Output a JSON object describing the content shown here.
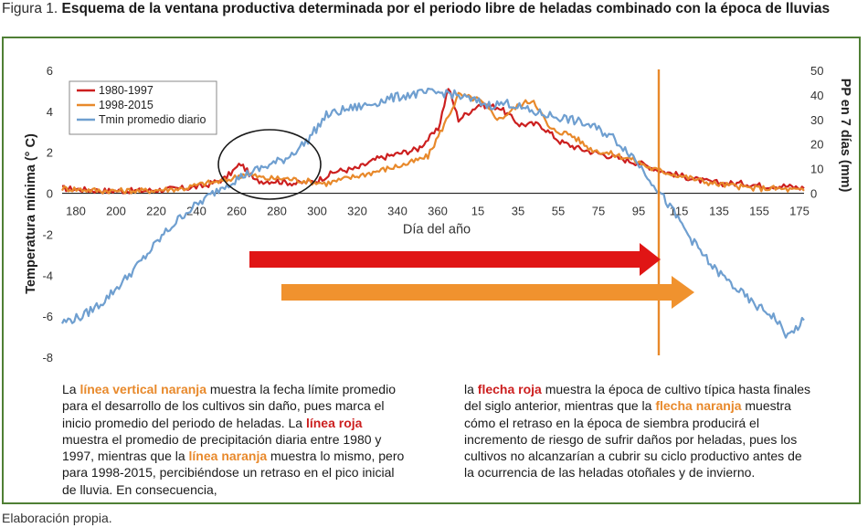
{
  "figure": {
    "label": "Figura 1.",
    "title": "Esquema de la ventana productiva determinada por el periodo libre de heladas combinado con la época de lluvias"
  },
  "chart_data": {
    "type": "line",
    "xlabel": "Día del año",
    "ylabel_left": "Temperatura mínima (° C)",
    "ylabel_right": "PP en 7 días (mm)",
    "x_ticks": [
      "180",
      "200",
      "220",
      "240",
      "260",
      "280",
      "300",
      "320",
      "340",
      "360",
      "15",
      "35",
      "55",
      "75",
      "95",
      "115",
      "135",
      "155",
      "175"
    ],
    "y_left_ticks": [
      6,
      4,
      2,
      0,
      -2,
      -4,
      -6,
      -8
    ],
    "y_left_range": [
      -8,
      6
    ],
    "y_right_ticks": [
      50,
      40,
      30,
      20,
      10,
      0
    ],
    "y_right_range": [
      0,
      50
    ],
    "legend": [
      {
        "name": "1980-1997",
        "color": "#cc1f1f"
      },
      {
        "name": "1998-2015",
        "color": "#e8892b"
      },
      {
        "name": "Tmin promedio diario",
        "color": "#6f9fd0"
      }
    ],
    "series": [
      {
        "name": "1980-1997",
        "axis": "right",
        "color": "#cc1f1f",
        "points": [
          [
            0,
            2
          ],
          [
            20,
            1
          ],
          [
            40,
            1
          ],
          [
            60,
            2
          ],
          [
            70,
            3
          ],
          [
            80,
            6
          ],
          [
            88,
            12
          ],
          [
            95,
            5
          ],
          [
            105,
            5
          ],
          [
            115,
            4
          ],
          [
            125,
            5
          ],
          [
            135,
            9
          ],
          [
            145,
            10
          ],
          [
            155,
            14
          ],
          [
            165,
            16
          ],
          [
            175,
            18
          ],
          [
            185,
            26
          ],
          [
            190,
            43
          ],
          [
            195,
            30
          ],
          [
            205,
            36
          ],
          [
            215,
            35
          ],
          [
            225,
            28
          ],
          [
            235,
            28
          ],
          [
            245,
            21
          ],
          [
            255,
            18
          ],
          [
            265,
            16
          ],
          [
            275,
            14
          ],
          [
            285,
            12
          ],
          [
            295,
            9
          ],
          [
            305,
            7
          ],
          [
            315,
            5
          ],
          [
            325,
            4
          ],
          [
            335,
            4
          ],
          [
            345,
            3
          ],
          [
            355,
            3
          ],
          [
            365,
            2
          ]
        ]
      },
      {
        "name": "1998-2015",
        "axis": "right",
        "color": "#e8892b",
        "points": [
          [
            0,
            2
          ],
          [
            20,
            1
          ],
          [
            40,
            1
          ],
          [
            60,
            2
          ],
          [
            70,
            4
          ],
          [
            80,
            5
          ],
          [
            90,
            8
          ],
          [
            100,
            6
          ],
          [
            110,
            6
          ],
          [
            120,
            5
          ],
          [
            130,
            4
          ],
          [
            140,
            6
          ],
          [
            150,
            8
          ],
          [
            160,
            10
          ],
          [
            170,
            12
          ],
          [
            180,
            15
          ],
          [
            188,
            28
          ],
          [
            195,
            40
          ],
          [
            205,
            38
          ],
          [
            215,
            30
          ],
          [
            225,
            36
          ],
          [
            232,
            38
          ],
          [
            240,
            26
          ],
          [
            250,
            24
          ],
          [
            260,
            18
          ],
          [
            270,
            16
          ],
          [
            280,
            14
          ],
          [
            290,
            10
          ],
          [
            300,
            8
          ],
          [
            310,
            6
          ],
          [
            320,
            4
          ],
          [
            330,
            3
          ],
          [
            340,
            2
          ],
          [
            350,
            2
          ],
          [
            365,
            1
          ]
        ]
      },
      {
        "name": "Tmin promedio diario",
        "axis": "left",
        "color": "#6f9fd0",
        "points": [
          [
            0,
            -6.3
          ],
          [
            10,
            -6
          ],
          [
            20,
            -5.3
          ],
          [
            30,
            -4.3
          ],
          [
            40,
            -3.2
          ],
          [
            50,
            -2
          ],
          [
            60,
            -1
          ],
          [
            70,
            -0.3
          ],
          [
            80,
            0.4
          ],
          [
            90,
            0.9
          ],
          [
            100,
            1.3
          ],
          [
            110,
            1.7
          ],
          [
            120,
            2.5
          ],
          [
            130,
            3.8
          ],
          [
            140,
            4.1
          ],
          [
            150,
            4.3
          ],
          [
            160,
            4.6
          ],
          [
            170,
            4.8
          ],
          [
            180,
            4.9
          ],
          [
            190,
            4.9
          ],
          [
            200,
            4.6
          ],
          [
            210,
            4.3
          ],
          [
            220,
            4.4
          ],
          [
            230,
            4
          ],
          [
            240,
            3.8
          ],
          [
            250,
            3.6
          ],
          [
            260,
            3.3
          ],
          [
            270,
            2.8
          ],
          [
            280,
            1.9
          ],
          [
            290,
            0.6
          ],
          [
            300,
            -0.8
          ],
          [
            310,
            -2.3
          ],
          [
            320,
            -3.6
          ],
          [
            330,
            -4.5
          ],
          [
            340,
            -5.4
          ],
          [
            350,
            -6.0
          ],
          [
            357,
            -7.0
          ],
          [
            365,
            -6.2
          ]
        ]
      }
    ]
  },
  "explanation": {
    "left": [
      {
        "text": "La ",
        "style": "n"
      },
      {
        "text": "línea vertical naranja",
        "style": "o"
      },
      {
        "text": " muestra la fecha límite promedio para el desarrollo de los cultivos sin daño, pues marca el inicio promedio del periodo de heladas. ",
        "style": "n"
      },
      {
        "text": "La ",
        "style": "n"
      },
      {
        "text": "línea roja",
        "style": "r"
      },
      {
        "text": " muestra el promedio de precipitación diaria entre 1980 y 1997, mientras que la ",
        "style": "n"
      },
      {
        "text": "línea naranja",
        "style": "o"
      },
      {
        "text": " muestra lo mismo, pero para 1998-2015, percibiéndose un retraso en el pico inicial de lluvia. En consecuencia,",
        "style": "n"
      }
    ],
    "right": [
      {
        "text": "la ",
        "style": "n"
      },
      {
        "text": "flecha roja",
        "style": "r"
      },
      {
        "text": " muestra la época de cultivo típica hasta finales del siglo anterior, mientras que la ",
        "style": "n"
      },
      {
        "text": "flecha naranja",
        "style": "o"
      },
      {
        "text": " muestra cómo el retraso en la época de siembra producirá el incremento de riesgo de sufrir daños por heladas, pues los cultivos no alcanzarían a cubrir su ciclo productivo antes de la ocurrencia de las heladas otoñales y de invierno.",
        "style": "n"
      }
    ]
  },
  "source": "Elaboración propia."
}
